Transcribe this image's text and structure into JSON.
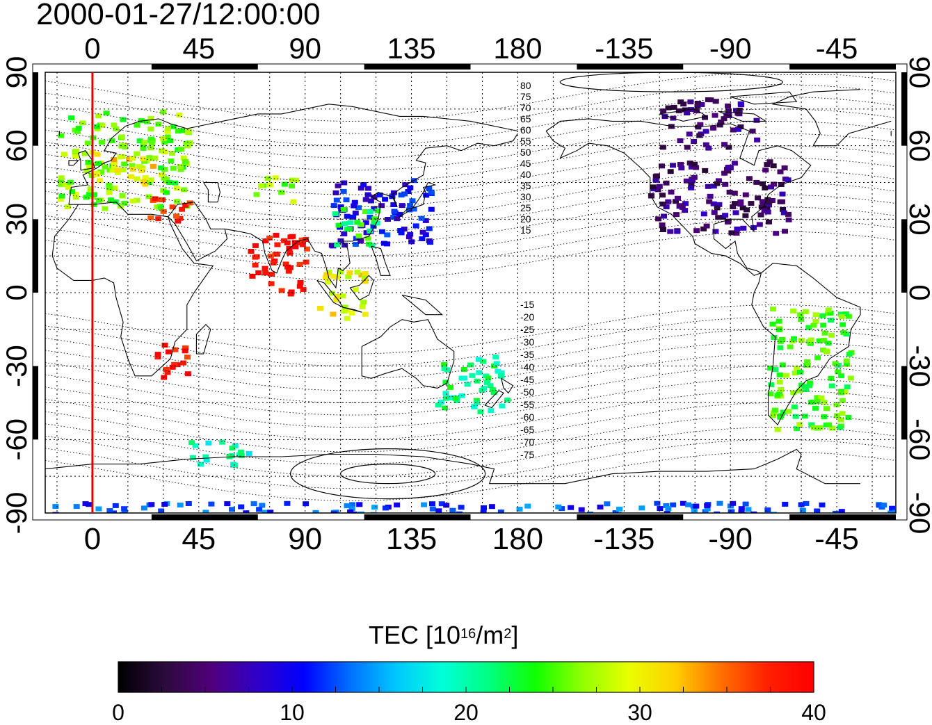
{
  "title": "2000-01-27/12:00:00",
  "map": {
    "projection": "equirectangular",
    "lon_range": [
      -20,
      340
    ],
    "lat_range": [
      -90,
      90
    ],
    "lon_ticks_top": [
      "0",
      "45",
      "90",
      "135",
      "180",
      "-135",
      "-90",
      "-45"
    ],
    "lon_ticks_bottom": [
      "0",
      "45",
      "90",
      "135",
      "180",
      "-135",
      "-90",
      "-45"
    ],
    "lat_ticks_left": [
      "90",
      "60",
      "30",
      "0",
      "-30",
      "-60",
      "-90"
    ],
    "lat_ticks_right": [
      "90",
      "60",
      "30",
      "0",
      "-30",
      "-60",
      "-90"
    ],
    "grid": "dotted, 15 degree spacing",
    "subsolar_meridian_lon": 0,
    "subsolar_line_color": "#e00000",
    "magnetic_latitude_labels_north": [
      "80",
      "75",
      "70",
      "65",
      "60",
      "55",
      "50",
      "45",
      "40",
      "35",
      "30",
      "25",
      "20",
      "15"
    ],
    "magnetic_latitude_labels_south": [
      "-15",
      "-20",
      "-25",
      "-30",
      "-35",
      "-40",
      "-45",
      "-50",
      "-55",
      "-60",
      "-65",
      "-70",
      "-75"
    ]
  },
  "colorbar": {
    "title_main": "TEC  [10",
    "title_sup": "16",
    "title_unit": "/m",
    "title_sup2": "2",
    "title_end": "]",
    "min": 0,
    "max": 40,
    "tick_labels": [
      "0",
      "10",
      "20",
      "30",
      "40"
    ],
    "colormap": [
      "#000000",
      "#2c0a3c",
      "#50007a",
      "#3000c8",
      "#0000ff",
      "#0070ff",
      "#00c8ff",
      "#00ffd8",
      "#00ff80",
      "#10ff00",
      "#90ff00",
      "#e8ff00",
      "#ffd000",
      "#ff7000",
      "#ff2000",
      "#ff0000"
    ]
  },
  "chart_data": {
    "type": "heatmap",
    "title": "2000-01-27/12:00:00",
    "quantity": "TEC",
    "unit": "10^16/m^2",
    "regions": [
      {
        "lon": [
          -15,
          40
        ],
        "lat": [
          35,
          75
        ],
        "tec": 26
      },
      {
        "lon": [
          0,
          25
        ],
        "lat": [
          45,
          58
        ],
        "tec": 31
      },
      {
        "lon": [
          20,
          40
        ],
        "lat": [
          30,
          40
        ],
        "tec": 37
      },
      {
        "lon": [
          68,
          85
        ],
        "lat": [
          38,
          48
        ],
        "tec": 26
      },
      {
        "lon": [
          100,
          145
        ],
        "lat": [
          20,
          48
        ],
        "tec": 10
      },
      {
        "lon": [
          100,
          120
        ],
        "lat": [
          20,
          35
        ],
        "tec": 23
      },
      {
        "lon": [
          -125,
          -65
        ],
        "lat": [
          25,
          55
        ],
        "tec": 5
      },
      {
        "lon": [
          -120,
          -80
        ],
        "lat": [
          60,
          80
        ],
        "tec": 5
      },
      {
        "lon": [
          -75,
          -40
        ],
        "lat": [
          -55,
          -5
        ],
        "tec": 25
      },
      {
        "lon": [
          145,
          175
        ],
        "lat": [
          -48,
          -25
        ],
        "tec": 21
      },
      {
        "lon": [
          40,
          65
        ],
        "lat": [
          -70,
          -60
        ],
        "tec": 20
      },
      {
        "lon": [
          -20,
          350
        ],
        "lat": [
          -90,
          -85
        ],
        "tec": 12
      },
      {
        "lon": [
          25,
          40
        ],
        "lat": [
          -35,
          -20
        ],
        "tec": 39
      },
      {
        "lon": [
          65,
          90
        ],
        "lat": [
          0,
          25
        ],
        "tec": 39
      },
      {
        "lon": [
          95,
          115
        ],
        "lat": [
          -10,
          10
        ],
        "tec": 30
      }
    ]
  }
}
